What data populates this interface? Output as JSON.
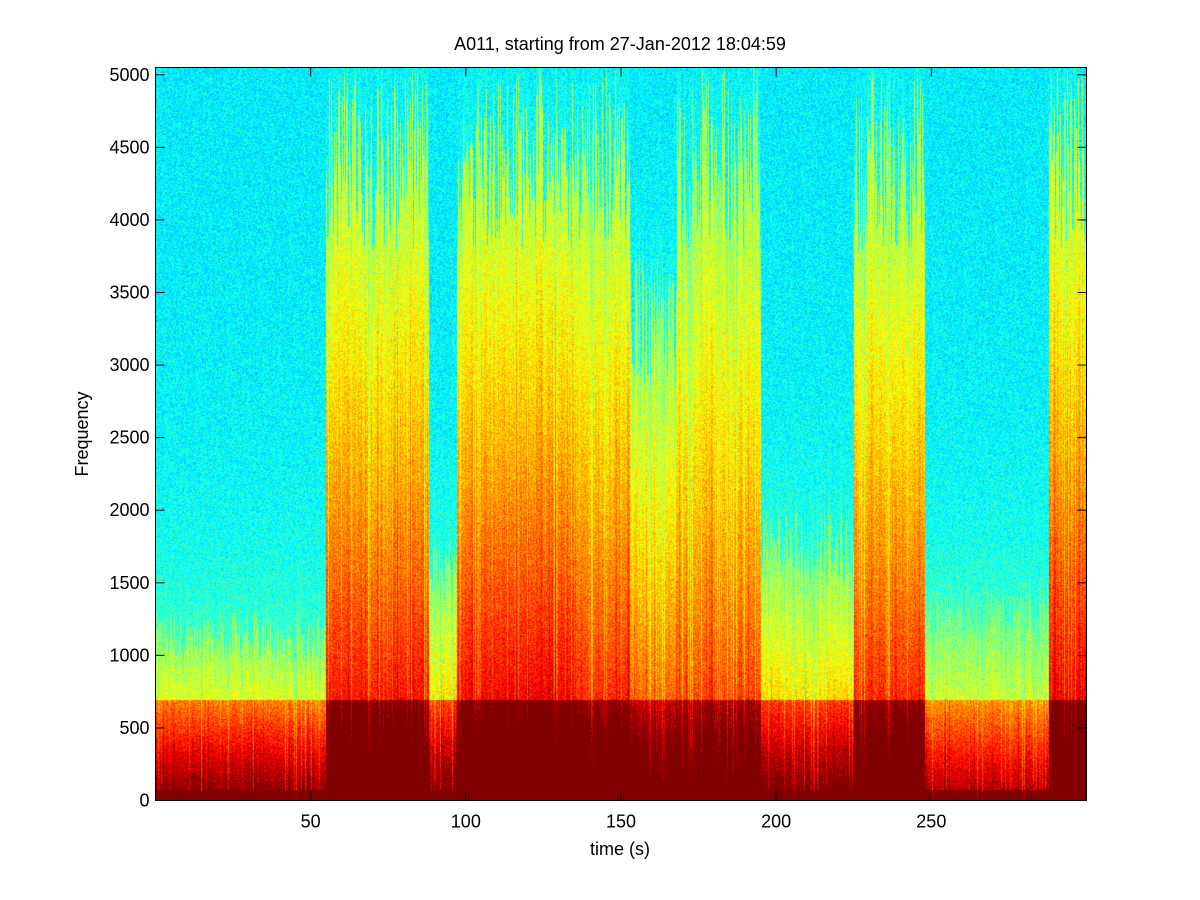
{
  "chart_data": {
    "type": "heatmap",
    "subtype": "spectrogram",
    "title": "A011, starting from 27-Jan-2012 18:04:59",
    "xlabel": "time (s)",
    "ylabel": "Frequency",
    "xlim": [
      0,
      300
    ],
    "ylim": [
      0,
      5050
    ],
    "xticks": [
      50,
      100,
      150,
      200,
      250
    ],
    "yticks": [
      0,
      500,
      1000,
      1500,
      2000,
      2500,
      3000,
      3500,
      4000,
      4500,
      5000
    ],
    "colormap": "jet",
    "background_level": "cyan",
    "grid": false,
    "legend": "none",
    "energy_bands": [
      {
        "t_start": 0,
        "t_end": 55,
        "level": 0.55,
        "reach_hz": 1300
      },
      {
        "t_start": 56,
        "t_end": 88,
        "level": 0.9,
        "reach_hz": 5050
      },
      {
        "t_start": 88,
        "t_end": 97,
        "level": 0.6,
        "reach_hz": 1800
      },
      {
        "t_start": 97,
        "t_end": 135,
        "level": 0.95,
        "reach_hz": 5050
      },
      {
        "t_start": 135,
        "t_end": 152,
        "level": 0.85,
        "reach_hz": 5050
      },
      {
        "t_start": 153,
        "t_end": 168,
        "level": 0.75,
        "reach_hz": 3800
      },
      {
        "t_start": 168,
        "t_end": 195,
        "level": 0.8,
        "reach_hz": 5050
      },
      {
        "t_start": 195,
        "t_end": 225,
        "level": 0.6,
        "reach_hz": 2000
      },
      {
        "t_start": 225,
        "t_end": 248,
        "level": 0.85,
        "reach_hz": 5050
      },
      {
        "t_start": 248,
        "t_end": 288,
        "level": 0.45,
        "reach_hz": 1500
      },
      {
        "t_start": 288,
        "t_end": 300,
        "level": 0.95,
        "reach_hz": 5050
      }
    ]
  }
}
